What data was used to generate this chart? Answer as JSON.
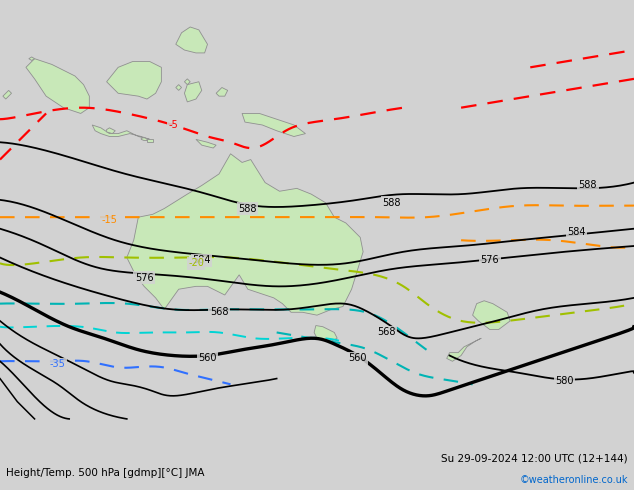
{
  "title_left": "Height/Temp. 500 hPa [gdmp][°C] JMA",
  "title_right": "Su 29-09-2024 12:00 UTC (12+144)",
  "credit": "©weatheronline.co.uk",
  "bg_color": "#d2d2d2",
  "land_color": "#c8e8b8",
  "land_edge": "#909090",
  "figsize": [
    6.34,
    4.9
  ],
  "dpi": 100,
  "xlim": [
    90,
    200
  ],
  "ylim": [
    -58,
    12
  ]
}
